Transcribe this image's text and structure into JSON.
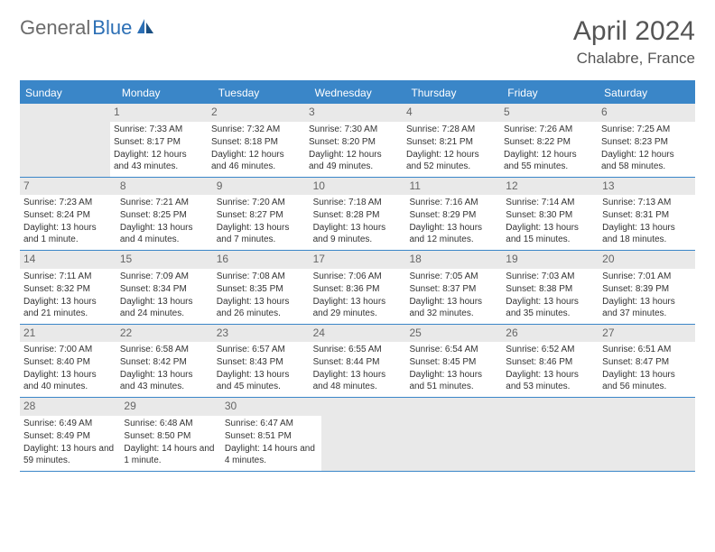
{
  "logo": {
    "text1": "General",
    "text2": "Blue"
  },
  "title": "April 2024",
  "location": "Chalabre, France",
  "colors": {
    "header_bg": "#3a86c8",
    "header_text": "#ffffff",
    "border": "#3a86c8",
    "daynum_bg": "#e9e9e9",
    "empty_bg": "#e9e9e9",
    "body_text": "#333333",
    "title_text": "#555555",
    "logo_gray": "#6b6b6b",
    "logo_blue": "#2c6fb5"
  },
  "weekdays": [
    "Sunday",
    "Monday",
    "Tuesday",
    "Wednesday",
    "Thursday",
    "Friday",
    "Saturday"
  ],
  "weeks": [
    [
      null,
      {
        "num": "1",
        "sunrise": "7:33 AM",
        "sunset": "8:17 PM",
        "daylight": "12 hours and 43 minutes."
      },
      {
        "num": "2",
        "sunrise": "7:32 AM",
        "sunset": "8:18 PM",
        "daylight": "12 hours and 46 minutes."
      },
      {
        "num": "3",
        "sunrise": "7:30 AM",
        "sunset": "8:20 PM",
        "daylight": "12 hours and 49 minutes."
      },
      {
        "num": "4",
        "sunrise": "7:28 AM",
        "sunset": "8:21 PM",
        "daylight": "12 hours and 52 minutes."
      },
      {
        "num": "5",
        "sunrise": "7:26 AM",
        "sunset": "8:22 PM",
        "daylight": "12 hours and 55 minutes."
      },
      {
        "num": "6",
        "sunrise": "7:25 AM",
        "sunset": "8:23 PM",
        "daylight": "12 hours and 58 minutes."
      }
    ],
    [
      {
        "num": "7",
        "sunrise": "7:23 AM",
        "sunset": "8:24 PM",
        "daylight": "13 hours and 1 minute."
      },
      {
        "num": "8",
        "sunrise": "7:21 AM",
        "sunset": "8:25 PM",
        "daylight": "13 hours and 4 minutes."
      },
      {
        "num": "9",
        "sunrise": "7:20 AM",
        "sunset": "8:27 PM",
        "daylight": "13 hours and 7 minutes."
      },
      {
        "num": "10",
        "sunrise": "7:18 AM",
        "sunset": "8:28 PM",
        "daylight": "13 hours and 9 minutes."
      },
      {
        "num": "11",
        "sunrise": "7:16 AM",
        "sunset": "8:29 PM",
        "daylight": "13 hours and 12 minutes."
      },
      {
        "num": "12",
        "sunrise": "7:14 AM",
        "sunset": "8:30 PM",
        "daylight": "13 hours and 15 minutes."
      },
      {
        "num": "13",
        "sunrise": "7:13 AM",
        "sunset": "8:31 PM",
        "daylight": "13 hours and 18 minutes."
      }
    ],
    [
      {
        "num": "14",
        "sunrise": "7:11 AM",
        "sunset": "8:32 PM",
        "daylight": "13 hours and 21 minutes."
      },
      {
        "num": "15",
        "sunrise": "7:09 AM",
        "sunset": "8:34 PM",
        "daylight": "13 hours and 24 minutes."
      },
      {
        "num": "16",
        "sunrise": "7:08 AM",
        "sunset": "8:35 PM",
        "daylight": "13 hours and 26 minutes."
      },
      {
        "num": "17",
        "sunrise": "7:06 AM",
        "sunset": "8:36 PM",
        "daylight": "13 hours and 29 minutes."
      },
      {
        "num": "18",
        "sunrise": "7:05 AM",
        "sunset": "8:37 PM",
        "daylight": "13 hours and 32 minutes."
      },
      {
        "num": "19",
        "sunrise": "7:03 AM",
        "sunset": "8:38 PM",
        "daylight": "13 hours and 35 minutes."
      },
      {
        "num": "20",
        "sunrise": "7:01 AM",
        "sunset": "8:39 PM",
        "daylight": "13 hours and 37 minutes."
      }
    ],
    [
      {
        "num": "21",
        "sunrise": "7:00 AM",
        "sunset": "8:40 PM",
        "daylight": "13 hours and 40 minutes."
      },
      {
        "num": "22",
        "sunrise": "6:58 AM",
        "sunset": "8:42 PM",
        "daylight": "13 hours and 43 minutes."
      },
      {
        "num": "23",
        "sunrise": "6:57 AM",
        "sunset": "8:43 PM",
        "daylight": "13 hours and 45 minutes."
      },
      {
        "num": "24",
        "sunrise": "6:55 AM",
        "sunset": "8:44 PM",
        "daylight": "13 hours and 48 minutes."
      },
      {
        "num": "25",
        "sunrise": "6:54 AM",
        "sunset": "8:45 PM",
        "daylight": "13 hours and 51 minutes."
      },
      {
        "num": "26",
        "sunrise": "6:52 AM",
        "sunset": "8:46 PM",
        "daylight": "13 hours and 53 minutes."
      },
      {
        "num": "27",
        "sunrise": "6:51 AM",
        "sunset": "8:47 PM",
        "daylight": "13 hours and 56 minutes."
      }
    ],
    [
      {
        "num": "28",
        "sunrise": "6:49 AM",
        "sunset": "8:49 PM",
        "daylight": "13 hours and 59 minutes."
      },
      {
        "num": "29",
        "sunrise": "6:48 AM",
        "sunset": "8:50 PM",
        "daylight": "14 hours and 1 minute."
      },
      {
        "num": "30",
        "sunrise": "6:47 AM",
        "sunset": "8:51 PM",
        "daylight": "14 hours and 4 minutes."
      },
      null,
      null,
      null,
      null
    ]
  ],
  "labels": {
    "sunrise": "Sunrise:",
    "sunset": "Sunset:",
    "daylight": "Daylight:"
  }
}
